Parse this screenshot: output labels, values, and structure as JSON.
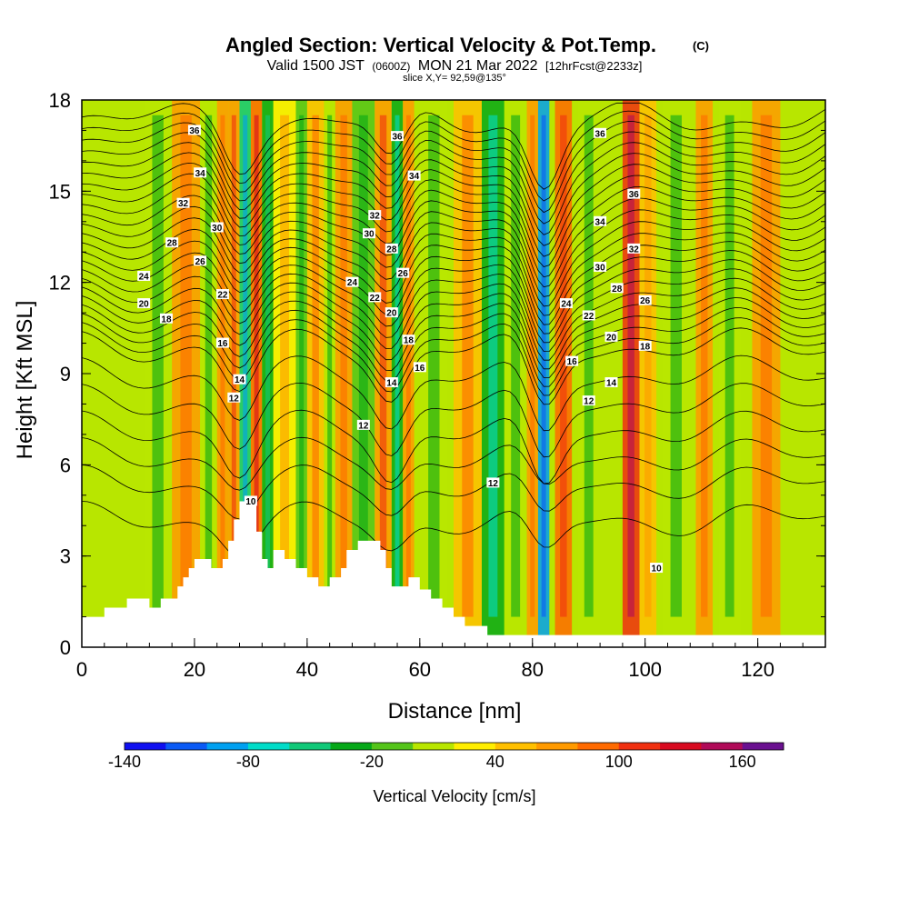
{
  "chart_data": {
    "type": "contour",
    "title": "Angled Section: Vertical Velocity & Pot.Temp.",
    "title_mark": "(C)",
    "subtitle": {
      "prefix": "Valid 1500 JST",
      "utc": "(0600Z)",
      "date": "MON 21 Mar 2022",
      "fcst": "[12hrFcst@2233z]"
    },
    "slice": "slice X,Y= 92,59@135°",
    "xlabel": "Distance [nm]",
    "ylabel": "Height [Kft MSL]",
    "xlim": [
      0,
      132
    ],
    "ylim": [
      0,
      18
    ],
    "xticks": [
      0,
      20,
      40,
      60,
      80,
      100,
      120
    ],
    "xtick_labels": [
      "0",
      "20",
      "40",
      "60",
      "80",
      "100",
      "120"
    ],
    "yticks": [
      0,
      3,
      6,
      9,
      12,
      15,
      18
    ],
    "ytick_labels": [
      "0",
      "3",
      "6",
      "9",
      "12",
      "15",
      "18"
    ],
    "colorbar": {
      "label": "Vertical Velocity [cm/s]",
      "tick_labels": [
        "-140",
        "-80",
        "-20",
        "40",
        "100",
        "160"
      ],
      "colors": [
        "#1010f0",
        "#0a5af5",
        "#00a0f0",
        "#00dcc8",
        "#10c878",
        "#06a818",
        "#54c41a",
        "#b8e600",
        "#ffee00",
        "#ffc000",
        "#ff9a00",
        "#ff6a00",
        "#f03010",
        "#d80a20",
        "#b00a58",
        "#6a1090"
      ]
    },
    "terrain_kft": [
      [
        0,
        1.0
      ],
      [
        4,
        1.0
      ],
      [
        4,
        1.3
      ],
      [
        8,
        1.3
      ],
      [
        8,
        1.6
      ],
      [
        12,
        1.6
      ],
      [
        12,
        1.3
      ],
      [
        14,
        1.3
      ],
      [
        14,
        1.6
      ],
      [
        17,
        1.6
      ],
      [
        17,
        2.0
      ],
      [
        18,
        2.0
      ],
      [
        18,
        2.3
      ],
      [
        19,
        2.3
      ],
      [
        19,
        2.6
      ],
      [
        20,
        2.6
      ],
      [
        20,
        2.9
      ],
      [
        23,
        2.9
      ],
      [
        23,
        2.6
      ],
      [
        25,
        2.6
      ],
      [
        25,
        2.9
      ],
      [
        26,
        2.9
      ],
      [
        26,
        3.5
      ],
      [
        27,
        3.5
      ],
      [
        27,
        4.2
      ],
      [
        28,
        4.2
      ],
      [
        28,
        4.8
      ],
      [
        31,
        4.8
      ],
      [
        31,
        3.8
      ],
      [
        32,
        3.8
      ],
      [
        32,
        2.9
      ],
      [
        33,
        2.9
      ],
      [
        33,
        2.6
      ],
      [
        34,
        2.6
      ],
      [
        34,
        3.2
      ],
      [
        36,
        3.2
      ],
      [
        36,
        2.9
      ],
      [
        38,
        2.9
      ],
      [
        38,
        2.6
      ],
      [
        40,
        2.6
      ],
      [
        40,
        2.3
      ],
      [
        42,
        2.3
      ],
      [
        42,
        2.0
      ],
      [
        44,
        2.0
      ],
      [
        44,
        2.3
      ],
      [
        46,
        2.3
      ],
      [
        46,
        2.6
      ],
      [
        47,
        2.6
      ],
      [
        47,
        3.2
      ],
      [
        49,
        3.2
      ],
      [
        49,
        3.5
      ],
      [
        53,
        3.5
      ],
      [
        53,
        3.2
      ],
      [
        54,
        3.2
      ],
      [
        54,
        2.6
      ],
      [
        55,
        2.6
      ],
      [
        55,
        2.0
      ],
      [
        58,
        2.0
      ],
      [
        58,
        2.3
      ],
      [
        60,
        2.3
      ],
      [
        60,
        1.9
      ],
      [
        62,
        1.9
      ],
      [
        62,
        1.6
      ],
      [
        64,
        1.6
      ],
      [
        64,
        1.3
      ],
      [
        66,
        1.3
      ],
      [
        66,
        1.0
      ],
      [
        68,
        1.0
      ],
      [
        68,
        0.7
      ],
      [
        72,
        0.7
      ],
      [
        72,
        0.4
      ],
      [
        132,
        0.4
      ]
    ],
    "velocity_cells": [
      {
        "x": [
          11,
          15
        ],
        "v": -20
      },
      {
        "x": [
          16,
          20
        ],
        "v": 40
      },
      {
        "x": [
          21,
          23
        ],
        "v": -20
      },
      {
        "x": [
          24,
          25
        ],
        "v": 40
      },
      {
        "x": [
          26,
          27
        ],
        "v": 55
      },
      {
        "x": [
          28,
          29
        ],
        "v": -80
      },
      {
        "x": [
          30,
          31
        ],
        "v": 70
      },
      {
        "x": [
          32,
          33
        ],
        "v": -50
      },
      {
        "x": [
          34,
          37
        ],
        "v": 10
      },
      {
        "x": [
          38,
          39
        ],
        "v": -30
      },
      {
        "x": [
          40,
          42
        ],
        "v": 35
      },
      {
        "x": [
          43,
          44
        ],
        "v": -20
      },
      {
        "x": [
          45,
          47
        ],
        "v": 40
      },
      {
        "x": [
          48,
          51
        ],
        "v": -25
      },
      {
        "x": [
          52,
          54
        ],
        "v": 55
      },
      {
        "x": [
          55,
          56
        ],
        "v": -60
      },
      {
        "x": [
          57,
          58
        ],
        "v": 45
      },
      {
        "x": [
          60,
          64
        ],
        "v": -20
      },
      {
        "x": [
          66,
          70
        ],
        "v": 30
      },
      {
        "x": [
          71,
          74
        ],
        "v": -60
      },
      {
        "x": [
          75,
          78
        ],
        "v": -20
      },
      {
        "x": [
          79,
          80
        ],
        "v": 40
      },
      {
        "x": [
          81,
          82
        ],
        "v": -110
      },
      {
        "x": [
          84,
          86
        ],
        "v": 60
      },
      {
        "x": [
          88,
          91
        ],
        "v": -20
      },
      {
        "x": [
          96,
          98
        ],
        "v": 90
      },
      {
        "x": [
          99,
          101
        ],
        "v": 20
      },
      {
        "x": [
          103,
          107
        ],
        "v": -20
      },
      {
        "x": [
          109,
          111
        ],
        "v": 45
      },
      {
        "x": [
          113,
          116
        ],
        "v": -20
      },
      {
        "x": [
          119,
          123
        ],
        "v": 40
      }
    ],
    "theta_levels": [
      10,
      12,
      14,
      16,
      18,
      20,
      22,
      24,
      26,
      28,
      30,
      32,
      34,
      36,
      38
    ],
    "theta_label_text": [
      "10",
      "12",
      "14",
      "16",
      "18",
      "20",
      "22",
      "24",
      "26",
      "28",
      "30",
      "32",
      "34",
      "36"
    ],
    "theta_labels": [
      {
        "t": "36",
        "x": 20,
        "y": 17.0
      },
      {
        "t": "34",
        "x": 21,
        "y": 15.6
      },
      {
        "t": "32",
        "x": 18,
        "y": 14.6
      },
      {
        "t": "30",
        "x": 24,
        "y": 13.8
      },
      {
        "t": "28",
        "x": 16,
        "y": 13.3
      },
      {
        "t": "26",
        "x": 21,
        "y": 12.7
      },
      {
        "t": "24",
        "x": 11,
        "y": 12.2
      },
      {
        "t": "22",
        "x": 25,
        "y": 11.6
      },
      {
        "t": "20",
        "x": 11,
        "y": 11.3
      },
      {
        "t": "18",
        "x": 15,
        "y": 10.8
      },
      {
        "t": "16",
        "x": 25,
        "y": 10.0
      },
      {
        "t": "14",
        "x": 28,
        "y": 8.8
      },
      {
        "t": "12",
        "x": 27,
        "y": 8.2
      },
      {
        "t": "10",
        "x": 30,
        "y": 4.8
      },
      {
        "t": "36",
        "x": 56,
        "y": 16.8
      },
      {
        "t": "34",
        "x": 59,
        "y": 15.5
      },
      {
        "t": "32",
        "x": 52,
        "y": 14.2
      },
      {
        "t": "30",
        "x": 51,
        "y": 13.6
      },
      {
        "t": "28",
        "x": 55,
        "y": 13.1
      },
      {
        "t": "26",
        "x": 57,
        "y": 12.3
      },
      {
        "t": "24",
        "x": 48,
        "y": 12.0
      },
      {
        "t": "22",
        "x": 52,
        "y": 11.5
      },
      {
        "t": "20",
        "x": 55,
        "y": 11.0
      },
      {
        "t": "18",
        "x": 58,
        "y": 10.1
      },
      {
        "t": "16",
        "x": 60,
        "y": 9.2
      },
      {
        "t": "14",
        "x": 55,
        "y": 8.7
      },
      {
        "t": "12",
        "x": 50,
        "y": 7.3
      },
      {
        "t": "12",
        "x": 73,
        "y": 5.4
      },
      {
        "t": "36",
        "x": 92,
        "y": 16.9
      },
      {
        "t": "36",
        "x": 98,
        "y": 14.9
      },
      {
        "t": "34",
        "x": 92,
        "y": 14.0
      },
      {
        "t": "32",
        "x": 98,
        "y": 13.1
      },
      {
        "t": "30",
        "x": 92,
        "y": 12.5
      },
      {
        "t": "28",
        "x": 95,
        "y": 11.8
      },
      {
        "t": "26",
        "x": 100,
        "y": 11.4
      },
      {
        "t": "24",
        "x": 86,
        "y": 11.3
      },
      {
        "t": "22",
        "x": 90,
        "y": 10.9
      },
      {
        "t": "20",
        "x": 94,
        "y": 10.2
      },
      {
        "t": "18",
        "x": 100,
        "y": 9.9
      },
      {
        "t": "16",
        "x": 87,
        "y": 9.4
      },
      {
        "t": "14",
        "x": 94,
        "y": 8.7
      },
      {
        "t": "12",
        "x": 90,
        "y": 8.1
      },
      {
        "t": "10",
        "x": 102,
        "y": 2.6
      }
    ]
  }
}
